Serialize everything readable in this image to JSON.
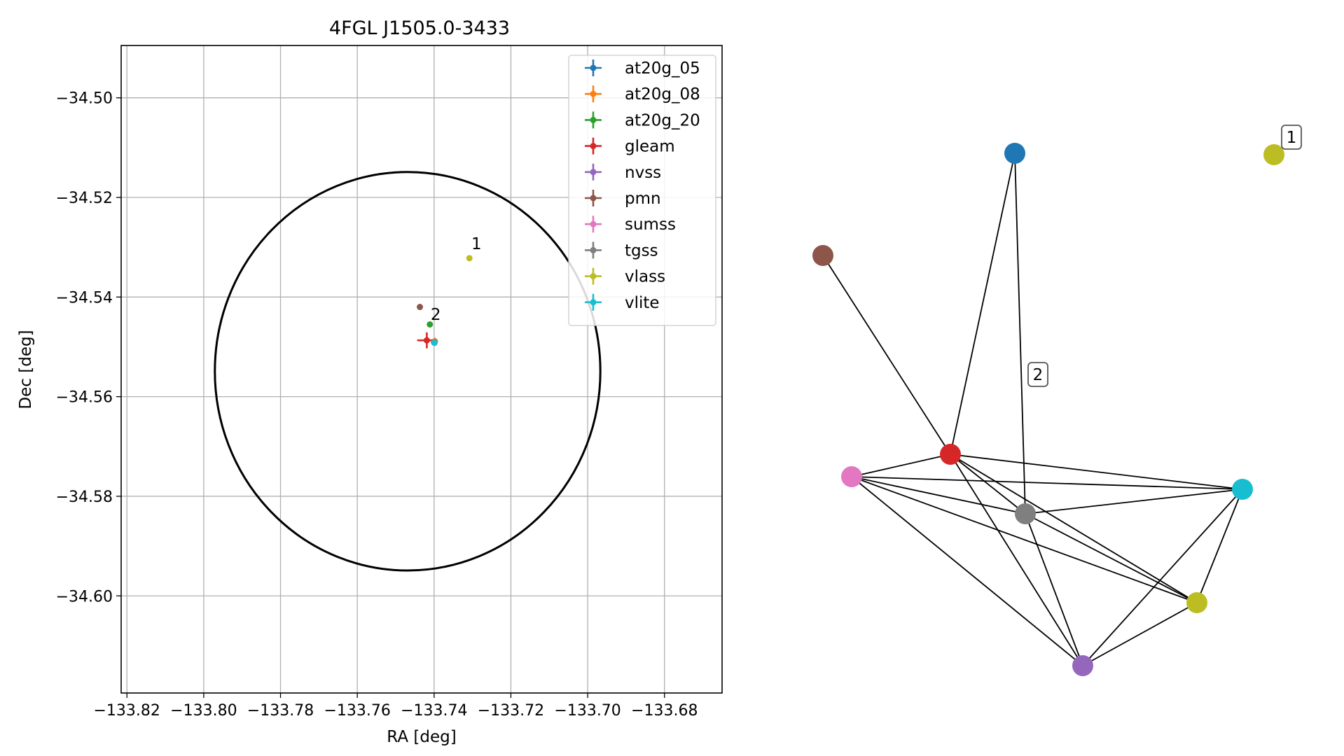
{
  "chart_data": [
    {
      "type": "scatter",
      "title": "4FGL J1505.0-3433",
      "xlabel": "RA [deg]",
      "ylabel": "Dec [deg]",
      "xlim": [
        -133.8215,
        -133.665
      ],
      "ylim": [
        -34.6195,
        -34.4895
      ],
      "xticks": [
        -133.82,
        -133.8,
        -133.78,
        -133.76,
        -133.74,
        -133.72,
        -133.7,
        -133.68
      ],
      "xtick_labels": [
        "−133.82",
        "−133.80",
        "−133.78",
        "−133.76",
        "−133.74",
        "−133.72",
        "−133.70",
        "−133.68"
      ],
      "yticks": [
        -34.5,
        -34.52,
        -34.54,
        -34.56,
        -34.58,
        -34.6
      ],
      "ytick_labels": [
        "−34.50",
        "−34.52",
        "−34.54",
        "−34.56",
        "−34.58",
        "−34.60"
      ],
      "grid": true,
      "legend_position": "top-right",
      "ellipse": {
        "center": [
          -133.7469,
          -34.5549
        ],
        "ra_semi_axis": 0.0502,
        "dec_semi_axis": 0.04
      },
      "series": [
        {
          "name": "at20g_05",
          "color": "#1f77b4",
          "points": [
            [
              -133.7398,
              -34.5489
            ]
          ],
          "xerr": 0.0007,
          "yerr": 0.0007
        },
        {
          "name": "at20g_08",
          "color": "#ff7f0e",
          "points": [
            [
              -133.7398,
              -34.5489
            ]
          ],
          "xerr": 0.0007,
          "yerr": 0.0007
        },
        {
          "name": "at20g_20",
          "color": "#2ca02c",
          "points": [
            [
              -133.7411,
              -34.5455
            ]
          ],
          "xerr": 0.0,
          "yerr": 0.0
        },
        {
          "name": "gleam",
          "color": "#d62728",
          "points": [
            [
              -133.7419,
              -34.5487
            ]
          ],
          "xerr": 0.0025,
          "yerr": 0.0016
        },
        {
          "name": "nvss",
          "color": "#9467bd",
          "points": [
            [
              -133.74,
              -34.5491
            ]
          ],
          "xerr": 0.0004,
          "yerr": 0.0004
        },
        {
          "name": "pmn",
          "color": "#8c564b",
          "points": [
            [
              -133.7437,
              -34.542
            ]
          ],
          "xerr": 0.0,
          "yerr": 0.0
        },
        {
          "name": "sumss",
          "color": "#e377c2",
          "points": [
            [
              -133.74,
              -34.5491
            ]
          ],
          "xerr": 0.0004,
          "yerr": 0.0004
        },
        {
          "name": "tgss",
          "color": "#7f7f7f",
          "points": [
            [
              -133.74,
              -34.5491
            ]
          ],
          "xerr": 0.0004,
          "yerr": 0.0004
        },
        {
          "name": "vlass",
          "color": "#bcbd22",
          "points": [
            [
              -133.7308,
              -34.5322
            ]
          ],
          "xerr": 0.0,
          "yerr": 0.0
        },
        {
          "name": "vlite",
          "color": "#17becf",
          "points": [
            [
              -133.7399,
              -34.5492
            ]
          ],
          "xerr": 0.0004,
          "yerr": 0.0004
        }
      ],
      "annotations": [
        {
          "text": "1",
          "x": -133.7303,
          "y": -34.5304
        },
        {
          "text": "2",
          "x": -133.7409,
          "y": -34.5446
        }
      ]
    },
    {
      "type": "network",
      "nodes": [
        {
          "id": "at20g",
          "color": "#1f77b4"
        },
        {
          "id": "vlass_1",
          "color": "#bcbd22"
        },
        {
          "id": "pmn",
          "color": "#8c564b"
        },
        {
          "id": "gleam",
          "color": "#d62728"
        },
        {
          "id": "sumss",
          "color": "#e377c2"
        },
        {
          "id": "tgss",
          "color": "#7f7f7f"
        },
        {
          "id": "vlite",
          "color": "#17becf"
        },
        {
          "id": "vlass_2",
          "color": "#bcbd22"
        },
        {
          "id": "nvss",
          "color": "#9467bd"
        }
      ],
      "edges": [
        [
          "at20g",
          "gleam"
        ],
        [
          "at20g",
          "tgss"
        ],
        [
          "pmn",
          "gleam"
        ],
        [
          "gleam",
          "sumss"
        ],
        [
          "gleam",
          "tgss"
        ],
        [
          "gleam",
          "vlite"
        ],
        [
          "gleam",
          "vlass_2"
        ],
        [
          "gleam",
          "nvss"
        ],
        [
          "sumss",
          "tgss"
        ],
        [
          "sumss",
          "vlite"
        ],
        [
          "sumss",
          "vlass_2"
        ],
        [
          "sumss",
          "nvss"
        ],
        [
          "tgss",
          "vlite"
        ],
        [
          "tgss",
          "vlass_2"
        ],
        [
          "tgss",
          "nvss"
        ],
        [
          "vlite",
          "vlass_2"
        ],
        [
          "vlite",
          "nvss"
        ],
        [
          "vlass_2",
          "nvss"
        ]
      ],
      "labels": [
        {
          "text": "1",
          "node": "vlass_1"
        },
        {
          "text": "2",
          "node": "at20g_tgss_edge"
        }
      ]
    }
  ]
}
